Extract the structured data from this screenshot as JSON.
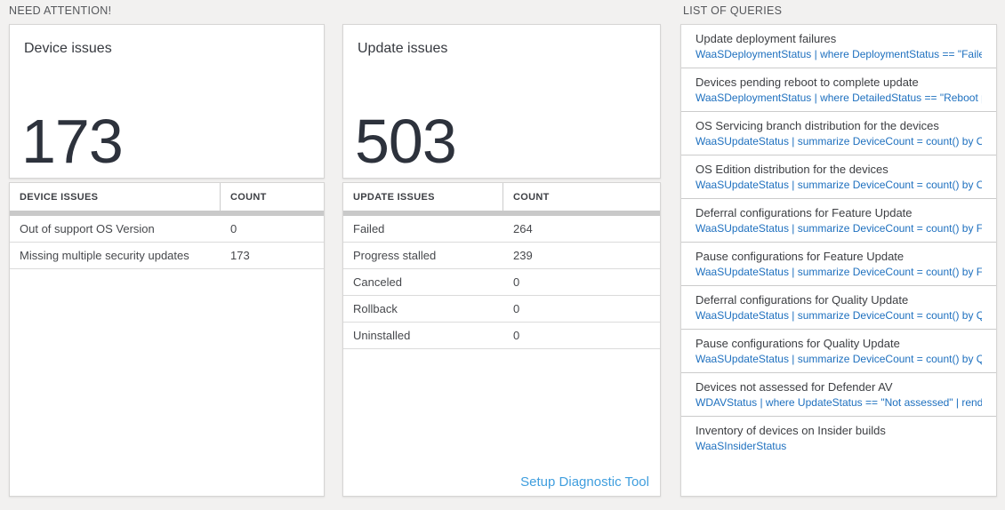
{
  "sections": {
    "need_attention": "NEED ATTENTION!",
    "list_of_queries": "LIST OF QUERIES"
  },
  "tiles": [
    {
      "title": "Device issues",
      "value": "173"
    },
    {
      "title": "Update issues",
      "value": "503"
    }
  ],
  "tables": [
    {
      "headers": [
        "DEVICE ISSUES",
        "COUNT"
      ],
      "rows": [
        [
          "Out of support OS Version",
          "0"
        ],
        [
          "Missing multiple security updates",
          "173"
        ]
      ]
    },
    {
      "headers": [
        "UPDATE ISSUES",
        "COUNT"
      ],
      "rows": [
        [
          "Failed",
          "264"
        ],
        [
          "Progress stalled",
          "239"
        ],
        [
          "Canceled",
          "0"
        ],
        [
          "Rollback",
          "0"
        ],
        [
          "Uninstalled",
          "0"
        ]
      ],
      "footer_link": "Setup Diagnostic Tool"
    }
  ],
  "queries": {
    "items": [
      {
        "title": "Update deployment failures",
        "query": "WaaSDeploymentStatus | where DeploymentStatus == \"Failed\" |..."
      },
      {
        "title": "Devices pending reboot to complete update",
        "query": "WaaSDeploymentStatus | where DetailedStatus == \"Reboot pend..."
      },
      {
        "title": "OS Servicing branch distribution for the devices",
        "query": "WaaSUpdateStatus | summarize DeviceCount = count() by OSSer..."
      },
      {
        "title": "OS Edition distribution for the devices",
        "query": "WaaSUpdateStatus | summarize DeviceCount = count() by OSEdit..."
      },
      {
        "title": "Deferral configurations for Feature Update",
        "query": "WaaSUpdateStatus | summarize DeviceCount = count() by Featur..."
      },
      {
        "title": "Pause configurations for Feature Update",
        "query": "WaaSUpdateStatus | summarize DeviceCount = count() by Featur..."
      },
      {
        "title": "Deferral configurations for Quality Update",
        "query": "WaaSUpdateStatus | summarize DeviceCount = count() by Qualit..."
      },
      {
        "title": "Pause configurations for Quality Update",
        "query": "WaaSUpdateStatus | summarize DeviceCount = count() by Qualit..."
      },
      {
        "title": "Devices not assessed for Defender AV",
        "query": "WDAVStatus | where UpdateStatus == \"Not assessed\" | render ta..."
      },
      {
        "title": "Inventory of devices on Insider builds",
        "query": "WaaSInsiderStatus"
      }
    ]
  },
  "colors": {
    "query_link_blue": "#1e70bf",
    "setup_link_blue": "#3f9ede",
    "big_number": "#2d323c",
    "page_background": "#f2f1f0",
    "header_band_gray": "#c9c9c9"
  }
}
